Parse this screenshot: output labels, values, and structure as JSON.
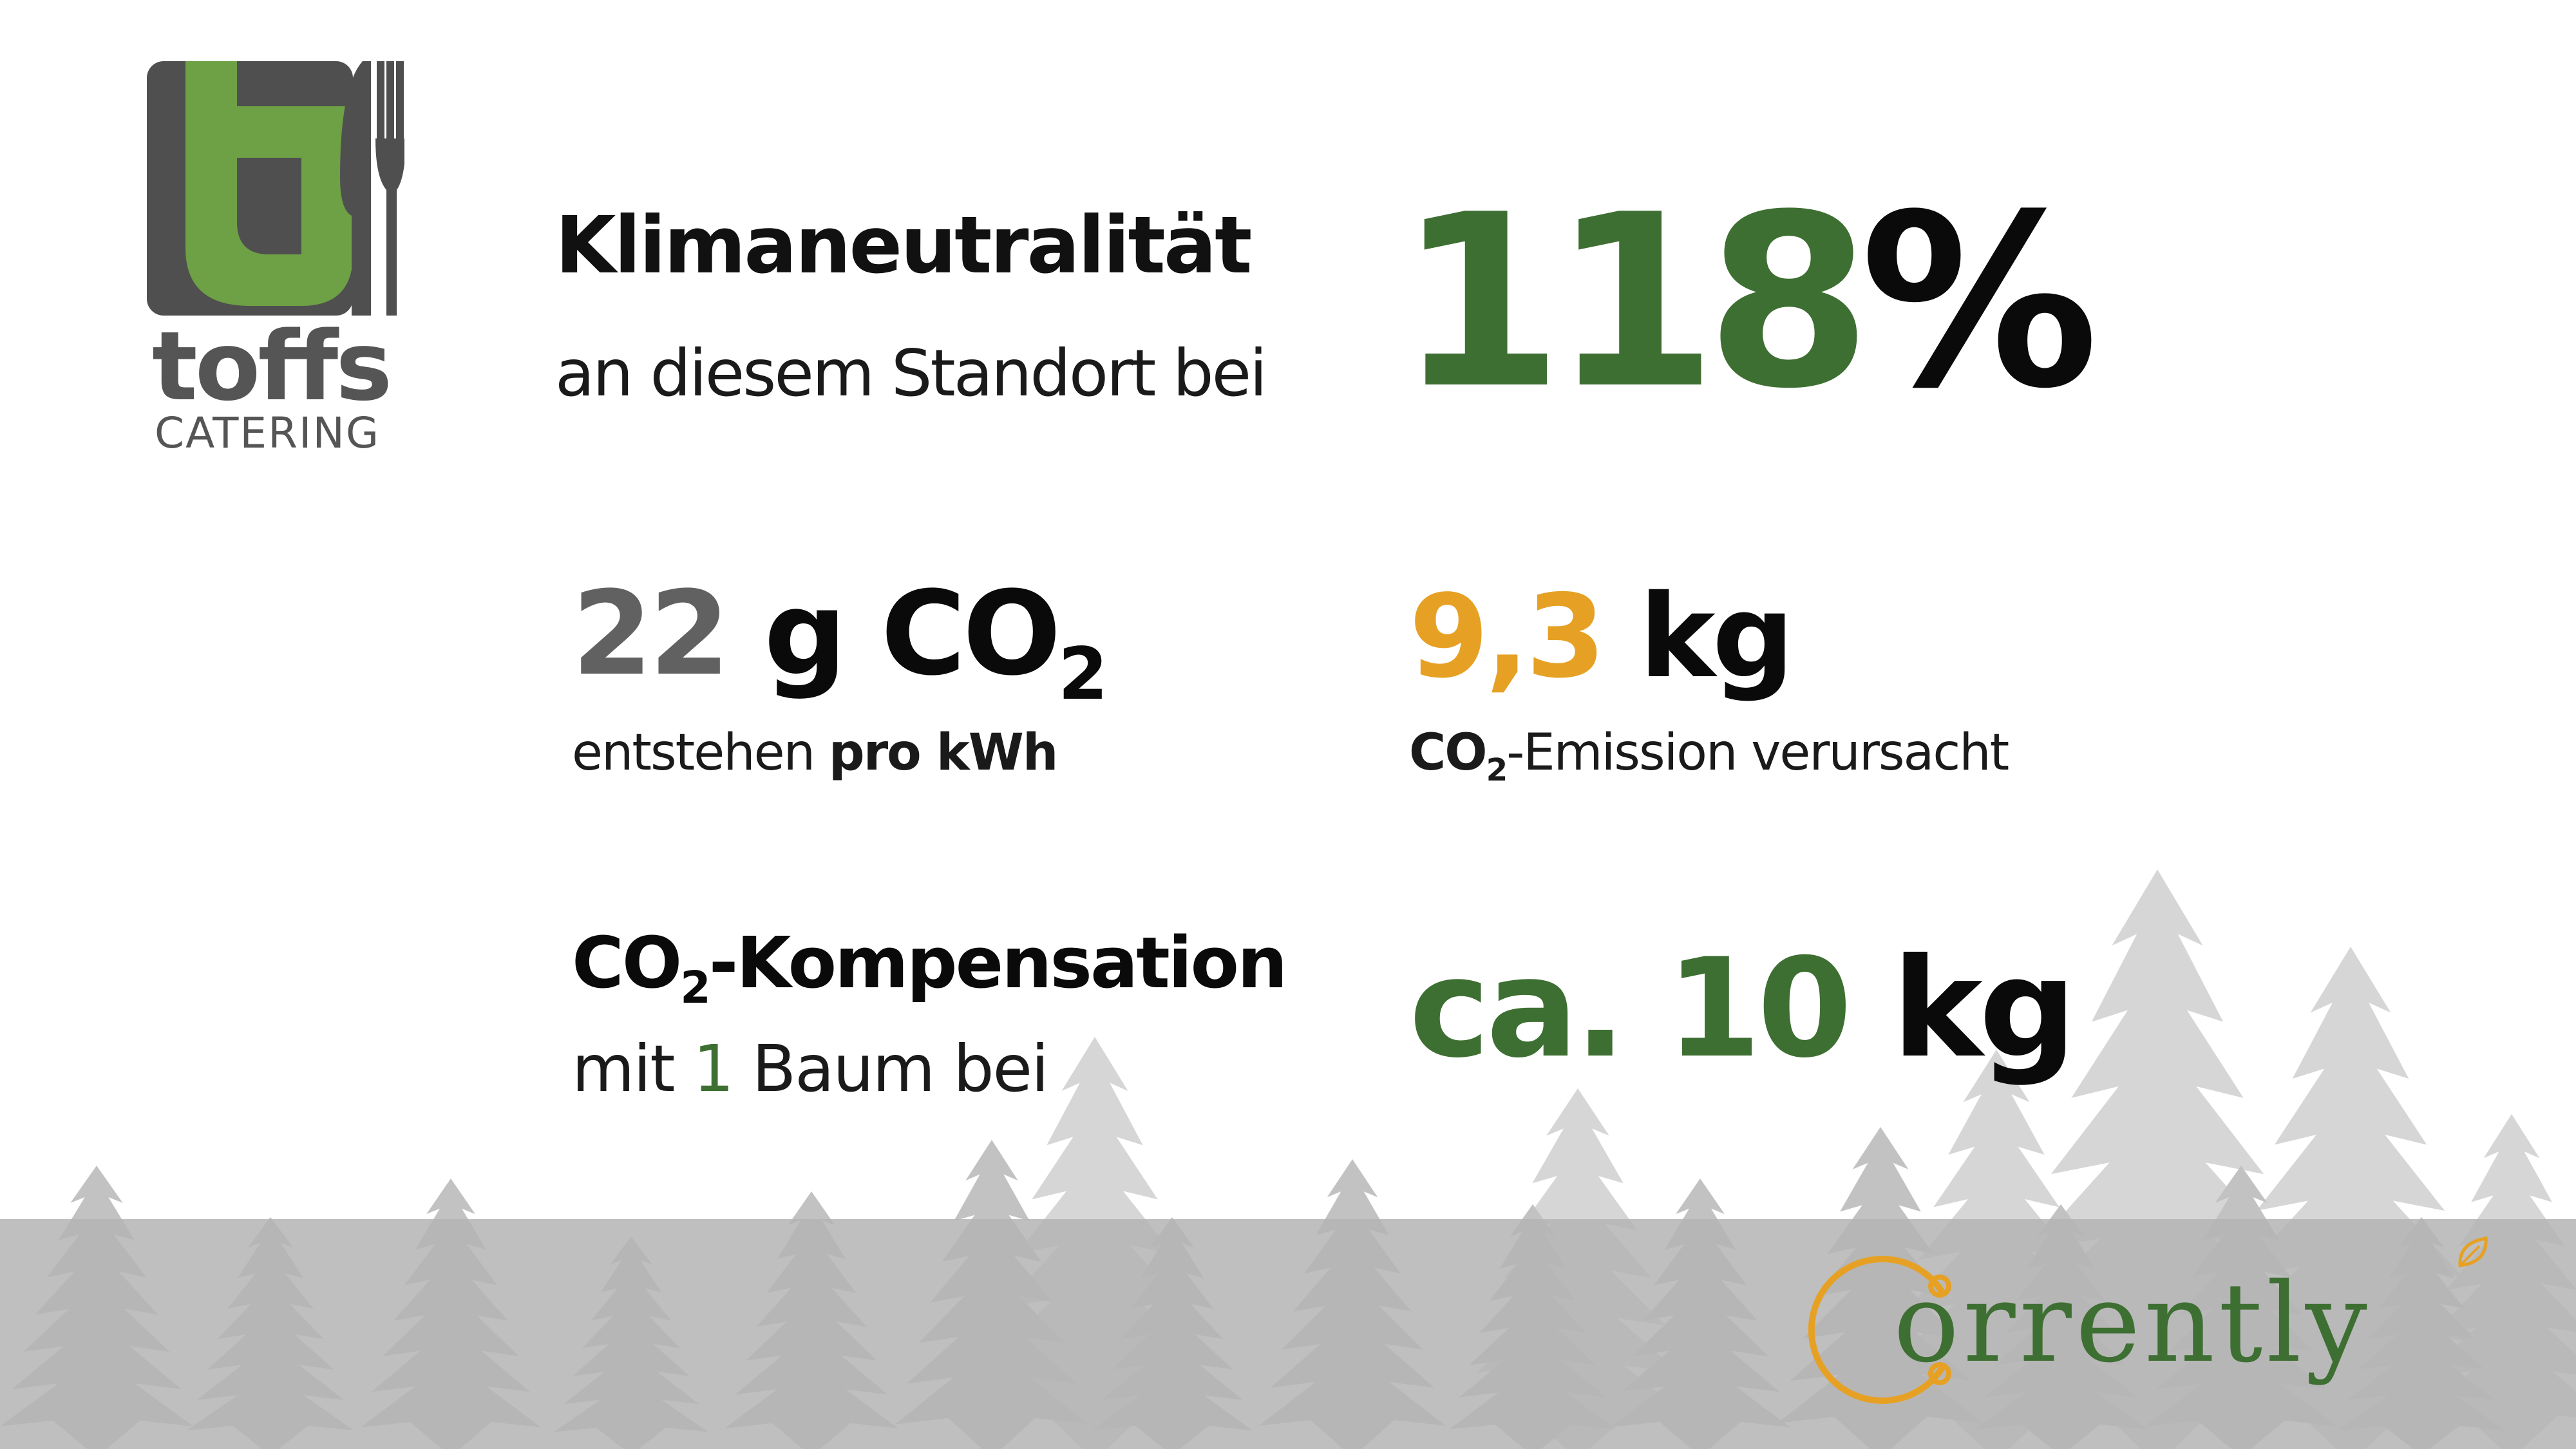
{
  "brand": {
    "logo_letter": "t",
    "name": "toffs",
    "subtitle": "CATERING"
  },
  "colors": {
    "green": "#3e6f32",
    "logo_green": "#6ea045",
    "logo_dark": "#4f4f4f",
    "orange": "#e6a125",
    "grey": "#616161",
    "forest": "#c4c4c4"
  },
  "climate": {
    "title": "Klimaneutralität",
    "subtitle": "an diesem Standort bei",
    "value": "118",
    "unit": "%"
  },
  "intensity": {
    "value": "22",
    "unit": "g CO",
    "unit_sub": "2",
    "caption_pre": "entstehen ",
    "caption_bold": "pro kWh"
  },
  "emission": {
    "value": "9,3",
    "unit": "kg",
    "caption_bold": "CO",
    "caption_bold_sub": "2",
    "caption_rest": "-Emission verursacht"
  },
  "compensation": {
    "title_pre": "CO",
    "title_sub": "2",
    "title_rest": "-Kompensation",
    "caption_pre": "mit ",
    "caption_num": "1",
    "caption_post": " Baum bei",
    "value_pre": "ca. 10",
    "value_unit": "kg"
  },
  "partner": {
    "name_rest": "orrently",
    "icons": [
      "leaf-icon"
    ]
  }
}
